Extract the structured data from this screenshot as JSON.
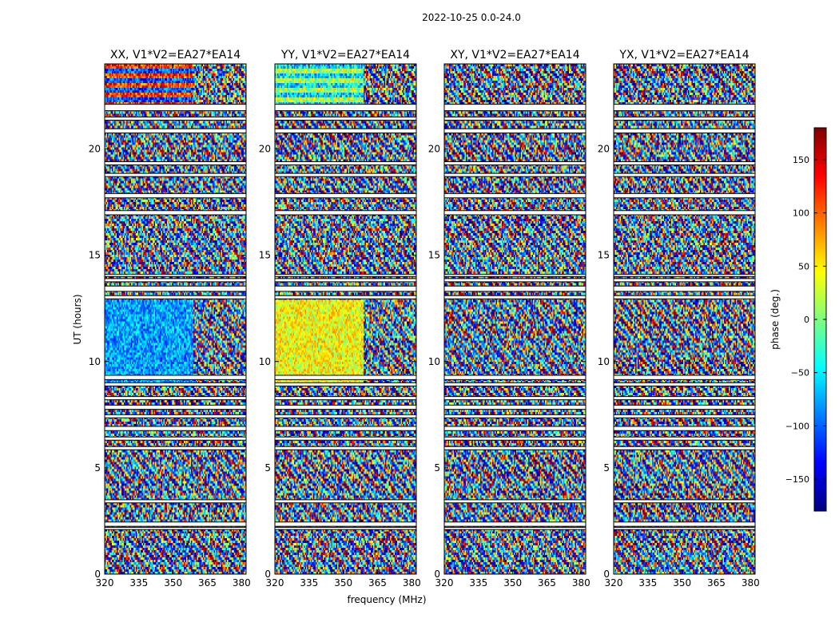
{
  "chart_data": {
    "type": "heatmap",
    "title": "2022-10-25 0.0-24.0",
    "xlabel": "frequency (MHz)",
    "ylabel": "UT (hours)",
    "xlim": [
      320,
      382
    ],
    "ylim": [
      0,
      24
    ],
    "x_ticks": [
      "320",
      "335",
      "350",
      "365",
      "380"
    ],
    "y_ticks": [
      "0",
      "5",
      "10",
      "15",
      "20"
    ],
    "colorbar": {
      "label": "phase (deg.)",
      "range": [
        -180,
        180
      ],
      "ticks": [
        "150",
        "100",
        "50",
        "0",
        "−50",
        "−100",
        "−150"
      ],
      "tick_values": [
        150,
        100,
        50,
        0,
        -50,
        -100,
        -150
      ],
      "colormap": [
        "#00007f",
        "#0000ff",
        "#007fff",
        "#00ffff",
        "#7fff7f",
        "#ffff00",
        "#ff7f00",
        "#ff0000",
        "#7f0000"
      ]
    },
    "panels": [
      {
        "title": "XX, V1*V2=EA27*EA14",
        "polarization": "XX"
      },
      {
        "title": "YY, V1*V2=EA27*EA14",
        "polarization": "YY"
      },
      {
        "title": "XY, V1*V2=EA27*EA14",
        "polarization": "XY"
      },
      {
        "title": "YX, V1*V2=EA27*EA14",
        "polarization": "YX"
      }
    ],
    "flagged_time_gaps_hours": [
      [
        21.8,
        22.1
      ],
      [
        21.35,
        21.5
      ],
      [
        20.75,
        20.95
      ],
      [
        19.25,
        19.4
      ],
      [
        18.7,
        18.85
      ],
      [
        17.7,
        17.9
      ],
      [
        16.9,
        17.1
      ],
      [
        14.0,
        14.1
      ],
      [
        13.75,
        13.9
      ],
      [
        13.3,
        13.55
      ],
      [
        12.95,
        13.1
      ],
      [
        9.15,
        9.35
      ],
      [
        8.85,
        9.0
      ],
      [
        8.2,
        8.35
      ],
      [
        7.75,
        7.95
      ],
      [
        7.35,
        7.5
      ],
      [
        6.75,
        6.95
      ],
      [
        6.3,
        6.45
      ],
      [
        5.85,
        6.0
      ],
      [
        3.35,
        3.5
      ],
      [
        2.25,
        2.45
      ],
      [
        2.1,
        2.2
      ]
    ]
  }
}
